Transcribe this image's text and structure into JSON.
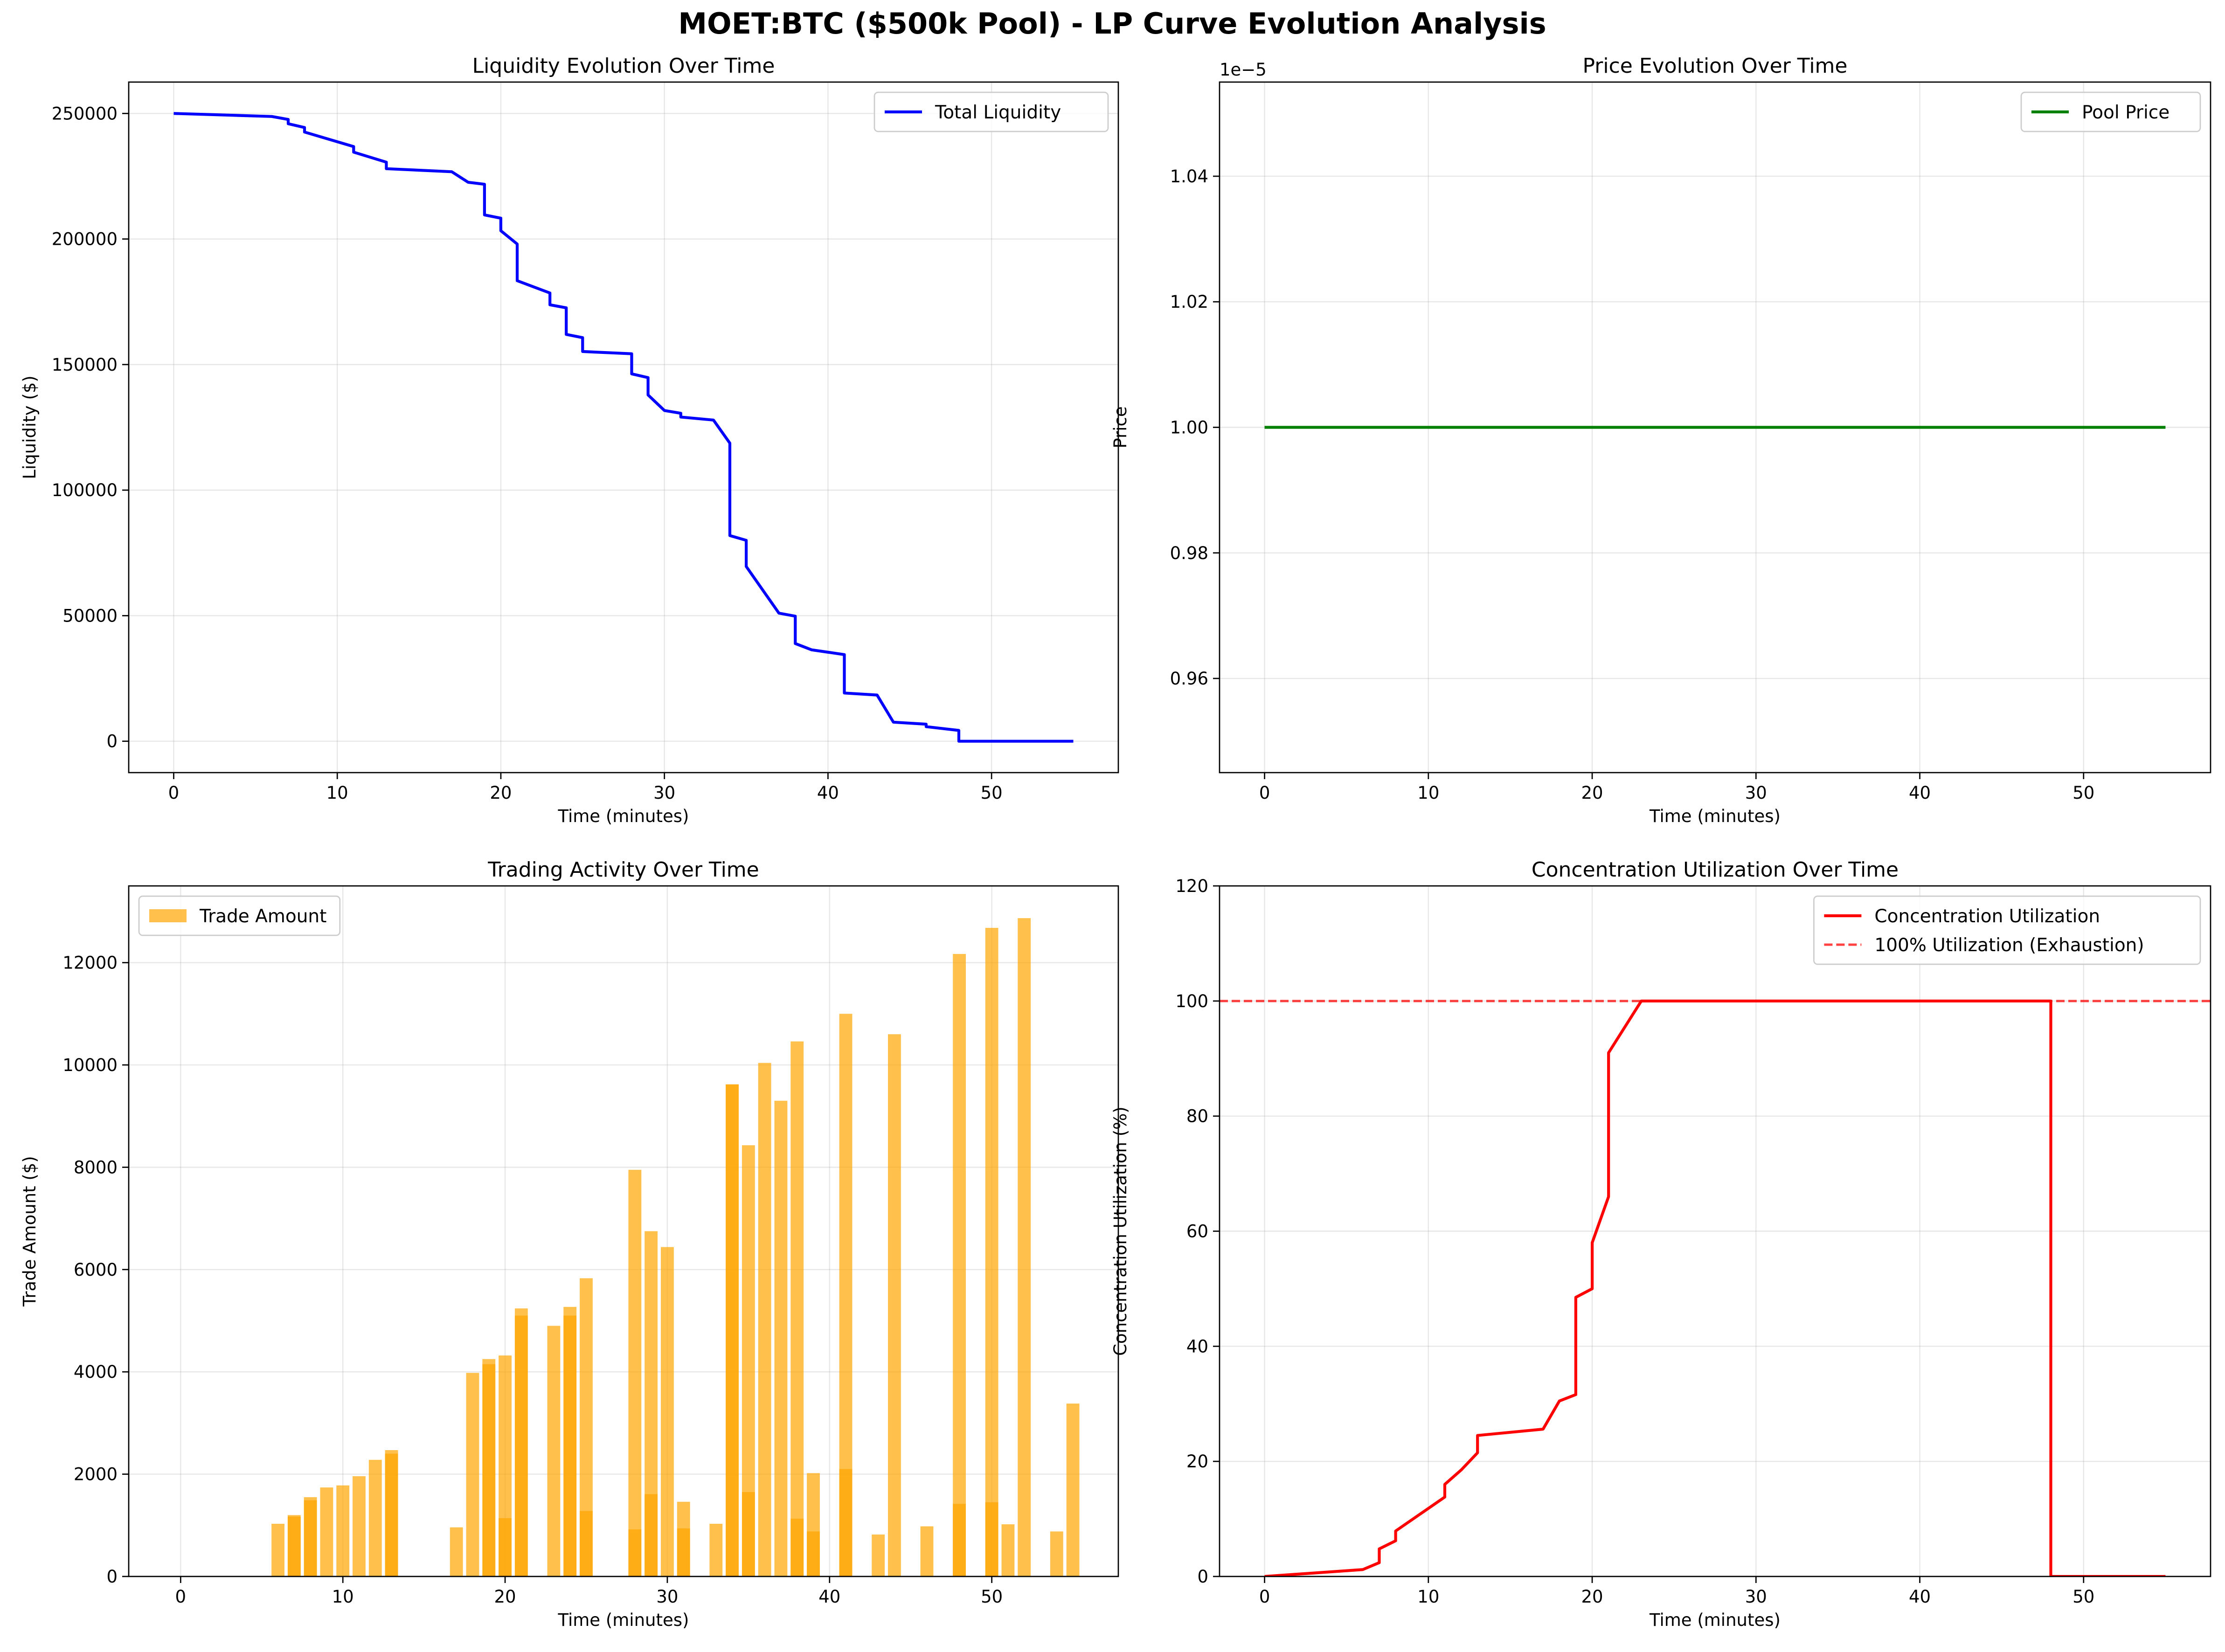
{
  "figure": {
    "title": "MOET:BTC ($500k Pool) - LP Curve Evolution Analysis"
  },
  "chart_data": [
    {
      "type": "line",
      "title": "Liquidity Evolution Over Time",
      "xlabel": "Time (minutes)",
      "ylabel": "Liquidity ($)",
      "xlim": [
        -2.75,
        57.75
      ],
      "ylim": [
        -12500,
        262500
      ],
      "xticks": [
        0,
        10,
        20,
        30,
        40,
        50
      ],
      "yticks": [
        0,
        50000,
        100000,
        150000,
        200000,
        250000
      ],
      "grid": true,
      "legend_position": "upper right",
      "series": [
        {
          "name": "Total Liquidity",
          "color": "#0000ff",
          "x": [
            0,
            6,
            7,
            7,
            8,
            8,
            11,
            11,
            13,
            13,
            17,
            18,
            19,
            19,
            20,
            20,
            21,
            21,
            23,
            23,
            24,
            24,
            25,
            25,
            28,
            28,
            29,
            29,
            30,
            31,
            31,
            33,
            34,
            34,
            35,
            35,
            37,
            38,
            38,
            39,
            41,
            41,
            43,
            44,
            46,
            46,
            48,
            48,
            55
          ],
          "y": [
            250000,
            248800,
            247600,
            245900,
            244400,
            242600,
            236800,
            234600,
            230600,
            228000,
            226800,
            222600,
            221800,
            209600,
            208300,
            203300,
            198000,
            183400,
            178500,
            173800,
            172600,
            162000,
            160700,
            155200,
            154300,
            146300,
            144800,
            137900,
            131700,
            130600,
            129100,
            127900,
            118700,
            81900,
            80000,
            69600,
            51000,
            49800,
            38900,
            36400,
            34500,
            19200,
            18400,
            7600,
            6800,
            5800,
            4300,
            0,
            0
          ]
        }
      ]
    },
    {
      "type": "line",
      "title": "Price Evolution Over Time",
      "xlabel": "Time (minutes)",
      "ylabel": "Price",
      "offset_text": "1e−5",
      "xlim": [
        -2.75,
        57.75
      ],
      "ylim": [
        0.945,
        1.055
      ],
      "xticks": [
        0,
        10,
        20,
        30,
        40,
        50
      ],
      "yticks": [
        0.96,
        0.98,
        1.0,
        1.02,
        1.04
      ],
      "ytick_labels": [
        "0.96",
        "0.98",
        "1.00",
        "1.02",
        "1.04"
      ],
      "grid": true,
      "legend_position": "upper right",
      "series": [
        {
          "name": "Pool Price",
          "color": "#008000",
          "x": [
            0,
            55
          ],
          "y": [
            1.0,
            1.0
          ]
        }
      ]
    },
    {
      "type": "bar",
      "title": "Trading Activity Over Time",
      "xlabel": "Time (minutes)",
      "ylabel": "Trade Amount ($)",
      "xlim": [
        -3.2,
        57.8
      ],
      "ylim": [
        0,
        13500
      ],
      "xticks": [
        0,
        10,
        20,
        30,
        40,
        50
      ],
      "yticks": [
        0,
        2000,
        4000,
        6000,
        8000,
        10000,
        12000
      ],
      "grid": true,
      "legend_position": "upper left",
      "bar_width": 0.8,
      "series": [
        {
          "name": "Trade Amount",
          "color": "#ffa500",
          "opacity": 0.7,
          "x": [
            6,
            7,
            7,
            8,
            8,
            9,
            10,
            11,
            12,
            13,
            13,
            17,
            18,
            19,
            19,
            20,
            20,
            21,
            21,
            23,
            24,
            24,
            25,
            25,
            28,
            28,
            29,
            29,
            30,
            31,
            31,
            33,
            34,
            34,
            35,
            35,
            36,
            37,
            38,
            38,
            39,
            39,
            41,
            41,
            43,
            44,
            46,
            48,
            48,
            50,
            50,
            51,
            52,
            54,
            55
          ],
          "values": [
            1030,
            1200,
            1170,
            1550,
            1490,
            1740,
            1780,
            1960,
            2280,
            2470,
            2400,
            960,
            3980,
            4250,
            4150,
            4320,
            1140,
            5240,
            5100,
            4900,
            5270,
            5100,
            5830,
            1280,
            7950,
            920,
            6750,
            1610,
            6440,
            1460,
            940,
            1030,
            9620,
            9620,
            8430,
            1650,
            10040,
            9300,
            10460,
            1130,
            2020,
            880,
            11000,
            2100,
            820,
            10600,
            980,
            12170,
            1420,
            12680,
            1450,
            1020,
            12870,
            880,
            3380
          ]
        }
      ]
    },
    {
      "type": "line",
      "title": "Concentration Utilization Over Time",
      "xlabel": "Time (minutes)",
      "ylabel": "Concentration Utilization (%)",
      "xlim": [
        -2.75,
        57.75
      ],
      "ylim": [
        0,
        120
      ],
      "xticks": [
        0,
        10,
        20,
        30,
        40,
        50
      ],
      "yticks": [
        0,
        20,
        40,
        60,
        80,
        100,
        120
      ],
      "grid": true,
      "legend_position": "upper right",
      "series": [
        {
          "name": "Concentration Utilization",
          "color": "#ff0000",
          "x": [
            0,
            6,
            7,
            7,
            8,
            8,
            11,
            11,
            12,
            13,
            13,
            17,
            18,
            19,
            19,
            20,
            20,
            21,
            21,
            23,
            48,
            48,
            55
          ],
          "y": [
            0,
            1.2,
            2.4,
            4.8,
            6.2,
            7.9,
            13.8,
            16.0,
            18.5,
            21.5,
            24.5,
            25.6,
            30.5,
            31.6,
            48.5,
            50.0,
            58.0,
            66.0,
            91.0,
            100,
            100,
            0,
            0
          ]
        },
        {
          "name": "100% Utilization (Exhaustion)",
          "color": "#ff0000",
          "style": "dashed",
          "opacity": 0.75,
          "hline": 100
        }
      ]
    }
  ]
}
